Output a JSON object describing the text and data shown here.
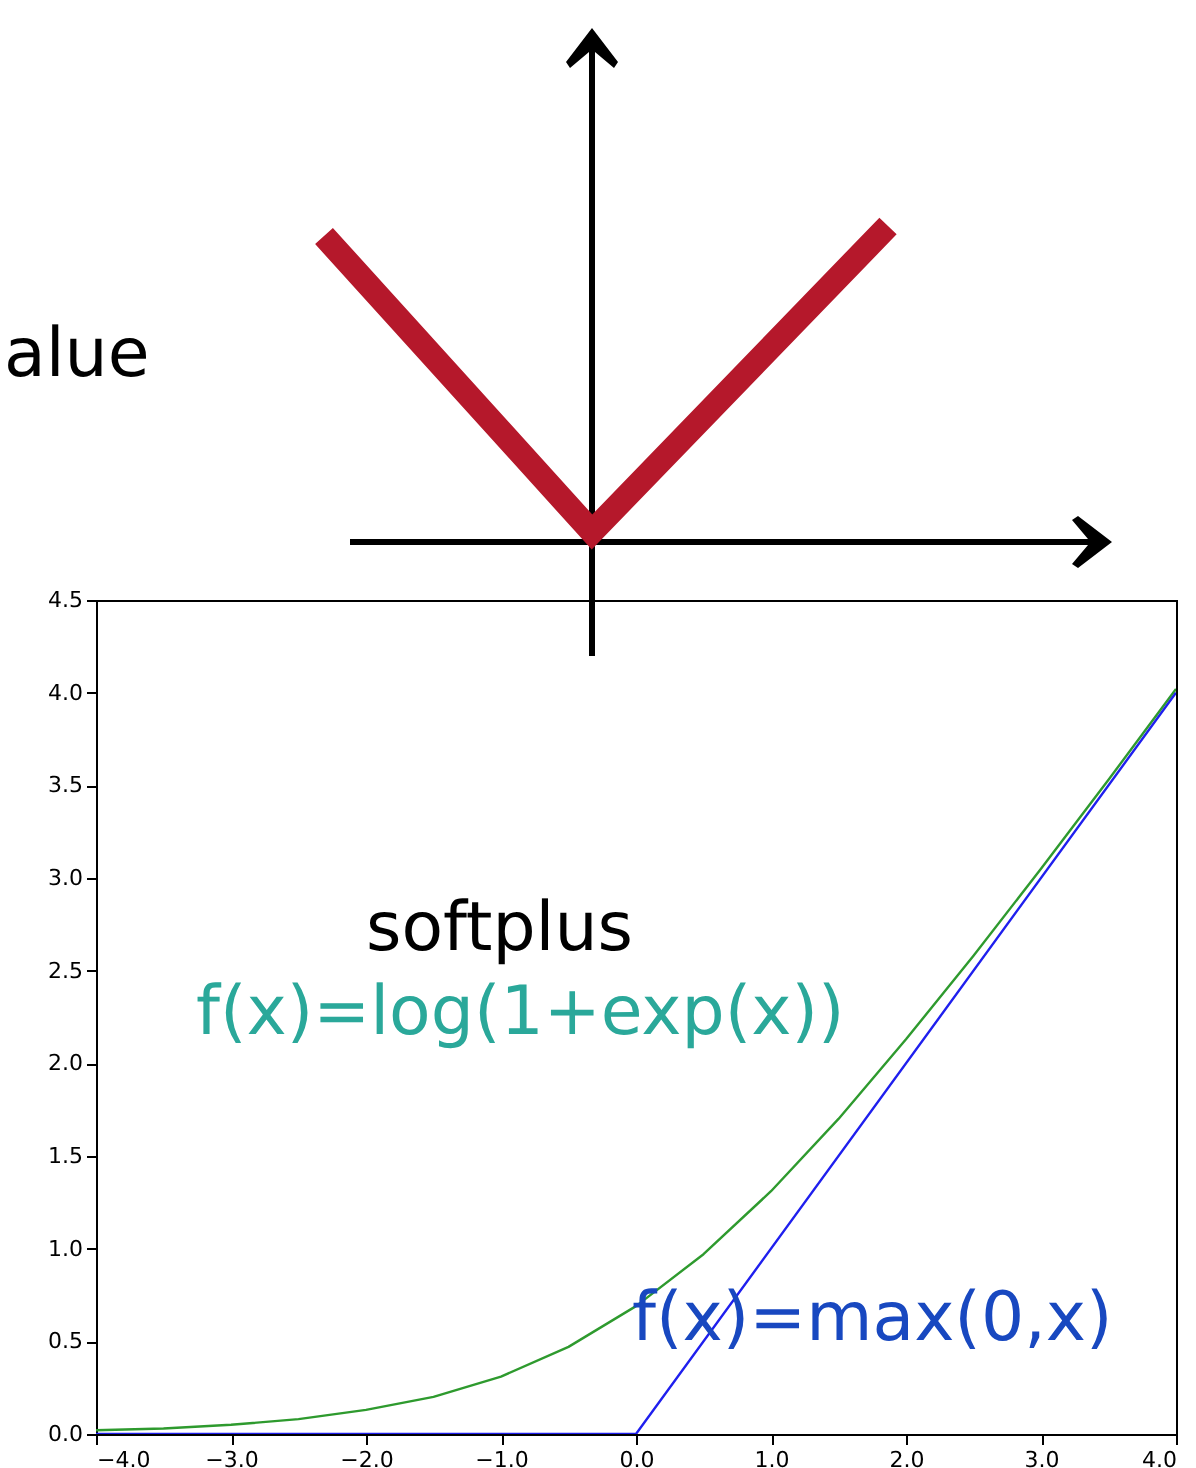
{
  "chart_data": {
    "type": "line",
    "xlim": [
      -4,
      4
    ],
    "xticks": [
      {
        "value": -4,
        "label": "−4.0"
      },
      {
        "value": -3,
        "label": "−3.0"
      },
      {
        "value": -2,
        "label": "−2.0"
      },
      {
        "value": -1,
        "label": "−1.0"
      },
      {
        "value": 0,
        "label": "0.0"
      },
      {
        "value": 1,
        "label": "1.0"
      },
      {
        "value": 2,
        "label": "2.0"
      },
      {
        "value": 3,
        "label": "3.0"
      },
      {
        "value": 4,
        "label": "4.0"
      }
    ],
    "ylim": [
      0,
      4.5
    ],
    "yticks": [
      {
        "value": 0,
        "label": "0.0"
      },
      0.5,
      {
        "value": 1,
        "label": "1.0"
      },
      1.5,
      {
        "value": 2,
        "label": "2.0"
      },
      2.5,
      {
        "value": 3,
        "label": "3.0"
      },
      3.5,
      {
        "value": 4,
        "label": "4.0"
      },
      4.5
    ],
    "grid": false,
    "marker": "none",
    "line_style": "solid",
    "series": [
      {
        "color": "#2e9a2e",
        "x": [
          -4,
          -3.5,
          -3,
          -2.5,
          -2,
          -1.5,
          -1,
          -0.5,
          0,
          0.5,
          1,
          1.5,
          2,
          2.5,
          3,
          3.5,
          4
        ],
        "values": [
          0.02,
          0.03,
          0.05,
          0.08,
          0.13,
          0.2,
          0.31,
          0.47,
          0.69,
          0.97,
          1.31,
          1.7,
          2.13,
          2.58,
          3.05,
          3.53,
          4.02
        ]
      },
      {
        "color": "#1f1fee",
        "x": [
          -4,
          0,
          4
        ],
        "values": [
          0,
          0,
          4
        ]
      }
    ],
    "annotations": [
      "alue",
      "softplus",
      "f(x)=log(1+exp(x))",
      "f(x)=max(0,x)"
    ]
  }
}
